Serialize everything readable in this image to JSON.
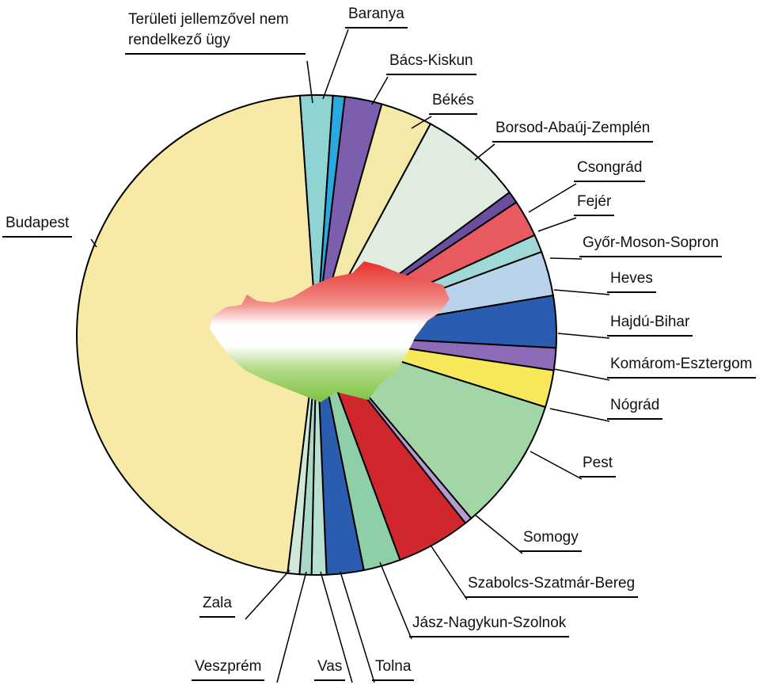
{
  "chart_data": {
    "type": "pie",
    "categories": [
      "Területi jellemzővel nem rendelkező ügy",
      "Baranya",
      "Bács-Kiskun",
      "Békés",
      "Borsod-Abaúj-Zemplén",
      "Csongrád",
      "Fejér",
      "Győr-Moson-Sopron",
      "Heves",
      "Hajdú-Bihar",
      "Komárom-Esztergom",
      "Nógrád",
      "Pest",
      "Somogy",
      "Szabolcs-Szatmár-Bereg",
      "Jász-Nagykun-Szolnok",
      "Tolna",
      "Vas",
      "Veszprém",
      "Zala",
      "Budapest"
    ],
    "values": [
      2.2,
      0.8,
      2.5,
      3.5,
      7,
      0.8,
      2.5,
      1.2,
      3,
      3.5,
      1.5,
      2.5,
      9,
      0.5,
      5,
      2.5,
      2.5,
      1,
      0.8,
      0.8,
      47
    ],
    "colors": [
      "#8fd3d3",
      "#29a9e0",
      "#7b5fae",
      "#f3eaa8",
      "#e0ecdf",
      "#6a4fa0",
      "#e85a60",
      "#9fd8d6",
      "#b8d3ea",
      "#2a5db0",
      "#8e6bb8",
      "#f7e85a",
      "#a3d6a6",
      "#b89ad0",
      "#d0262d",
      "#8fcfa8",
      "#2a5db0",
      "#b8e0d0",
      "#a9d8c6",
      "#cfe8d8",
      "#f6eaa6"
    ]
  }
}
